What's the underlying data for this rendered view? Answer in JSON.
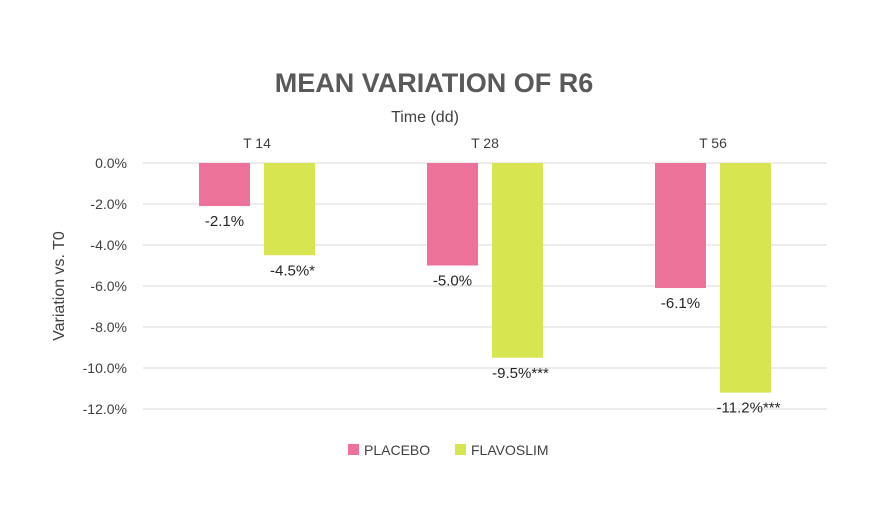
{
  "chart_data": {
    "type": "bar",
    "title": "MEAN VARIATION OF R6",
    "xlabel": "Time (dd)",
    "ylabel": "Variation vs. T0",
    "categories": [
      "T 14",
      "T 28",
      "T 56"
    ],
    "series": [
      {
        "name": "PLACEBO",
        "color": "#ED7299",
        "values": [
          -2.1,
          -5.0,
          -6.1
        ],
        "labels": [
          "-2.1%",
          "-5.0%",
          "-6.1%"
        ]
      },
      {
        "name": "FLAVOSLIM",
        "color": "#D7E650",
        "values": [
          -4.5,
          -9.5,
          -11.2
        ],
        "labels": [
          "-4.5%*",
          "-9.5%***",
          "-11.2%***"
        ]
      }
    ],
    "ylim": [
      -12,
      0
    ],
    "yticks": [
      0,
      -2,
      -4,
      -6,
      -8,
      -10,
      -12
    ],
    "ytick_labels": [
      "0.0%",
      "-2.0%",
      "-4.0%",
      "-6.0%",
      "-8.0%",
      "-10.0%",
      "-12.0%"
    ],
    "x_axis_position": "top",
    "grid": true,
    "gridline_color": "#D9D9D9",
    "legend_position": "bottom"
  }
}
